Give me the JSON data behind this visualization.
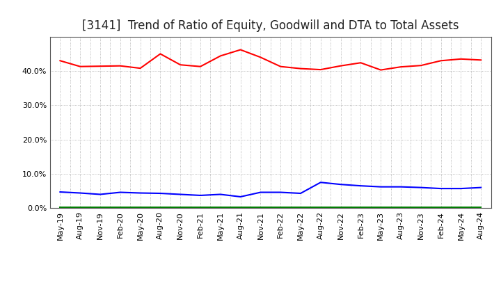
{
  "title": "[3141]  Trend of Ratio of Equity, Goodwill and DTA to Total Assets",
  "x_labels": [
    "May-19",
    "Aug-19",
    "Nov-19",
    "Feb-20",
    "May-20",
    "Aug-20",
    "Nov-20",
    "Feb-21",
    "May-21",
    "Aug-21",
    "Nov-21",
    "Feb-22",
    "May-22",
    "Aug-22",
    "Nov-22",
    "Feb-23",
    "May-23",
    "Aug-23",
    "Nov-23",
    "Feb-24",
    "May-24",
    "Aug-24"
  ],
  "equity": [
    0.43,
    0.413,
    0.414,
    0.415,
    0.408,
    0.45,
    0.418,
    0.413,
    0.444,
    0.462,
    0.44,
    0.413,
    0.407,
    0.404,
    0.415,
    0.424,
    0.403,
    0.412,
    0.416,
    0.43,
    0.435,
    0.432
  ],
  "goodwill": [
    0.047,
    0.044,
    0.04,
    0.046,
    0.044,
    0.043,
    0.04,
    0.037,
    0.04,
    0.033,
    0.046,
    0.046,
    0.043,
    0.075,
    0.069,
    0.065,
    0.062,
    0.062,
    0.06,
    0.057,
    0.057,
    0.06
  ],
  "dta": [
    0.003,
    0.003,
    0.003,
    0.003,
    0.003,
    0.003,
    0.003,
    0.003,
    0.003,
    0.003,
    0.003,
    0.003,
    0.003,
    0.003,
    0.003,
    0.003,
    0.003,
    0.003,
    0.003,
    0.003,
    0.003,
    0.003
  ],
  "equity_color": "#FF0000",
  "goodwill_color": "#0000FF",
  "dta_color": "#008000",
  "ylim": [
    0.0,
    0.5
  ],
  "yticks": [
    0.0,
    0.1,
    0.2,
    0.3,
    0.4
  ],
  "background_color": "#FFFFFF",
  "grid_color": "#999999",
  "title_fontsize": 12,
  "legend_fontsize": 9,
  "tick_fontsize": 8
}
